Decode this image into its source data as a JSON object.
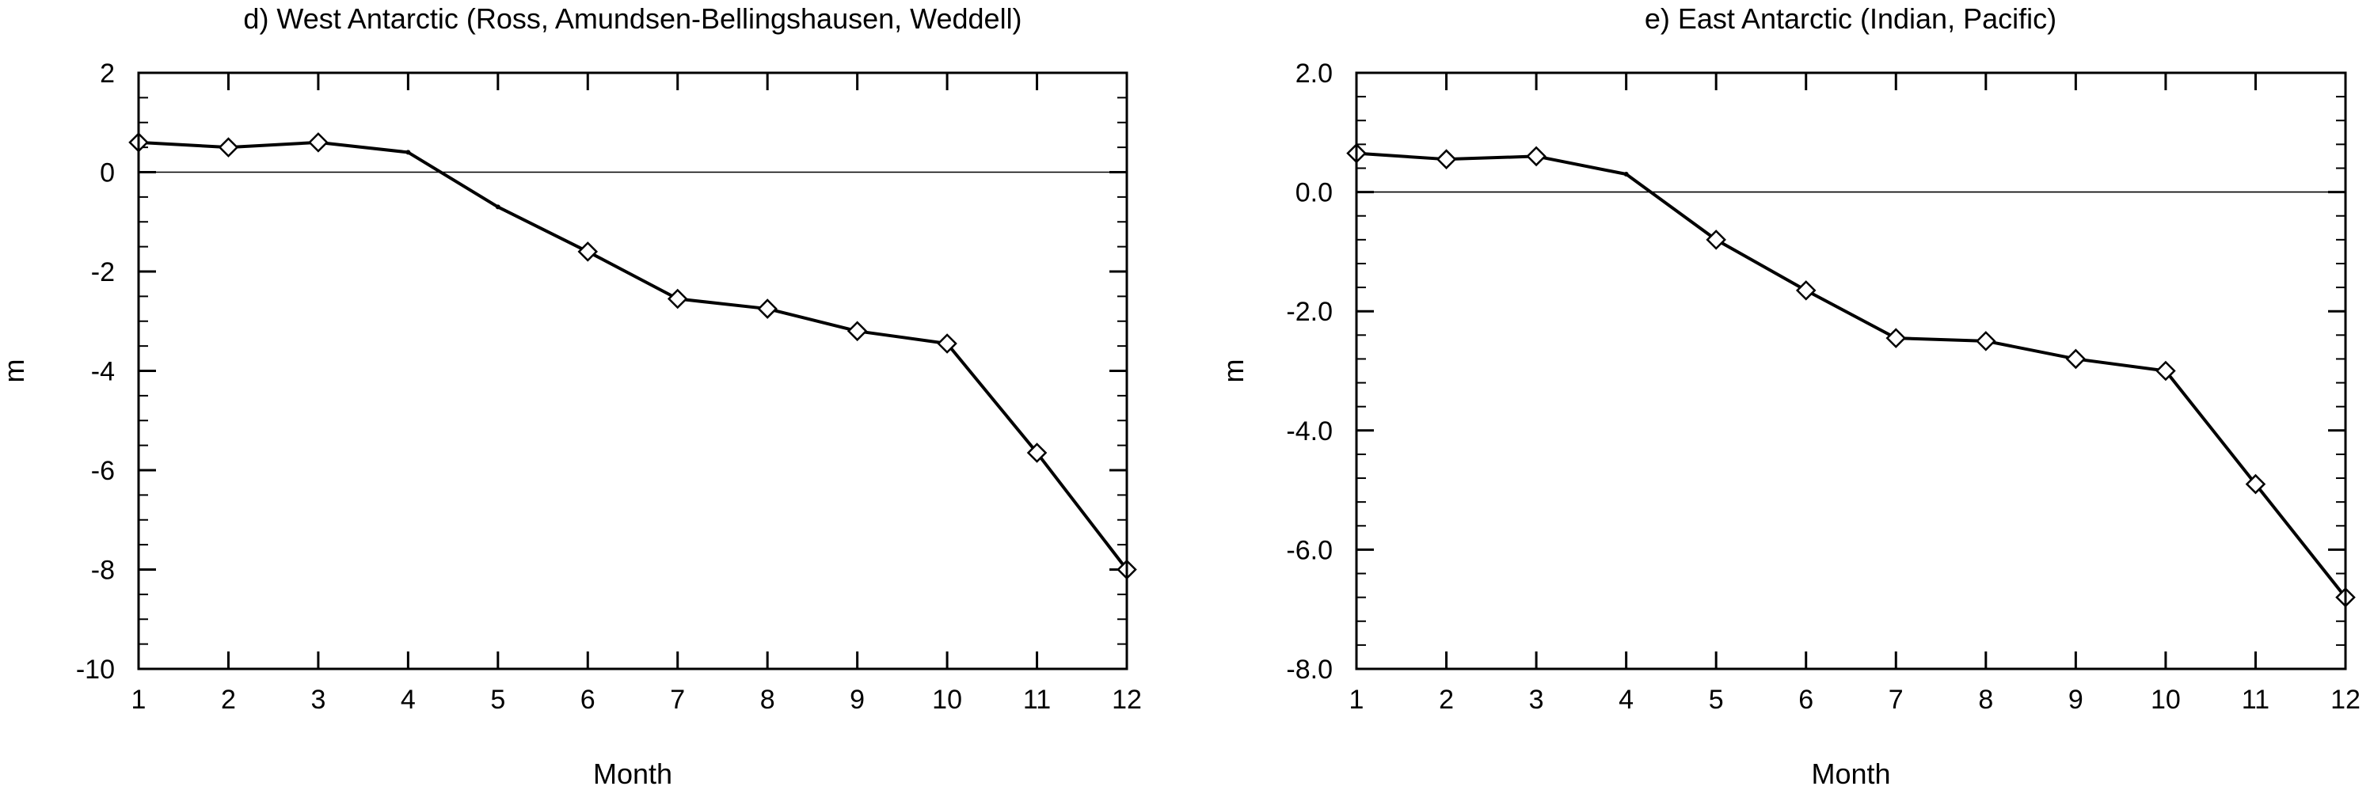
{
  "chart_data": [
    {
      "type": "line",
      "title": "d) West Antarctic (Ross, Amundsen-Bellingshausen, Weddell)",
      "xlabel": "Month",
      "ylabel": "m",
      "x": [
        1,
        2,
        3,
        4,
        5,
        6,
        7,
        8,
        9,
        10,
        11,
        12
      ],
      "xticks": [
        "1",
        "2",
        "3",
        "4",
        "5",
        "6",
        "7",
        "8",
        "9",
        "10",
        "11",
        "12"
      ],
      "xlim": [
        1,
        12
      ],
      "ylim": [
        -10,
        2
      ],
      "yticks": [
        2,
        0,
        -2,
        -4,
        -6,
        -8,
        -10
      ],
      "ytick_labels": [
        "2",
        "0",
        "-2",
        "-4",
        "-6",
        "-8",
        "-10"
      ],
      "y_minor_step": 0.5,
      "zero_reference_line": true,
      "grid": false,
      "series": [
        {
          "values": [
            0.6,
            0.5,
            0.6,
            0.4,
            -0.7,
            -1.6,
            -2.55,
            -2.75,
            -3.2,
            -3.45,
            -5.65,
            -8.0
          ],
          "marker": "diamond",
          "markers_at": [
            true,
            true,
            true,
            false,
            false,
            true,
            true,
            true,
            true,
            true,
            true,
            true
          ],
          "color": "#000000"
        }
      ]
    },
    {
      "type": "line",
      "title": "e) East Antarctic (Indian, Pacific)",
      "xlabel": "Month",
      "ylabel": "m",
      "x": [
        1,
        2,
        3,
        4,
        5,
        6,
        7,
        8,
        9,
        10,
        11,
        12
      ],
      "xticks": [
        "1",
        "2",
        "3",
        "4",
        "5",
        "6",
        "7",
        "8",
        "9",
        "10",
        "11",
        "12"
      ],
      "xlim": [
        1,
        12
      ],
      "ylim": [
        -8,
        2
      ],
      "yticks": [
        2,
        0,
        -2,
        -4,
        -6,
        -8
      ],
      "ytick_labels": [
        "2.0",
        "0.0",
        "-2.0",
        "-4.0",
        "-6.0",
        "-8.0"
      ],
      "y_minor_step": 0.4,
      "zero_reference_line": true,
      "grid": false,
      "series": [
        {
          "values": [
            0.65,
            0.55,
            0.6,
            0.3,
            -0.8,
            -1.65,
            -2.45,
            -2.5,
            -2.8,
            -3.0,
            -4.9,
            -6.8
          ],
          "marker": "diamond",
          "markers_at": [
            true,
            true,
            true,
            false,
            true,
            true,
            true,
            true,
            true,
            true,
            true,
            true
          ],
          "color": "#000000"
        }
      ]
    }
  ]
}
